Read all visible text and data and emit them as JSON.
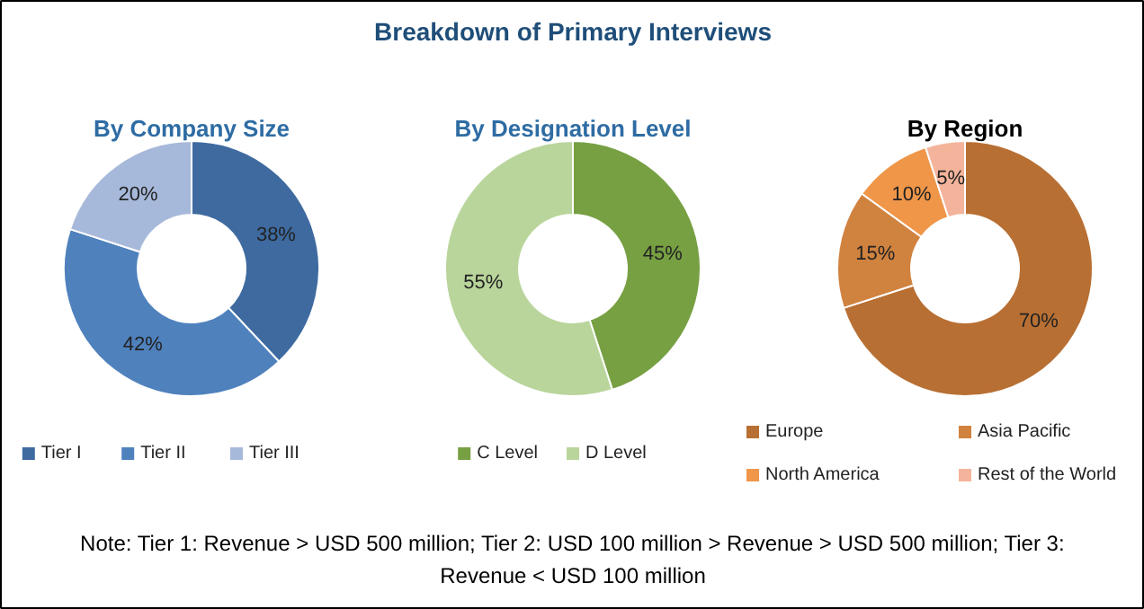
{
  "chart_data": [
    {
      "type": "donut",
      "subtitle": "By Company Size",
      "categories": [
        "Tier I",
        "Tier II",
        "Tier III"
      ],
      "values": [
        38,
        42,
        20
      ],
      "value_labels": [
        "38%",
        "42%",
        "20%"
      ],
      "colors": [
        "#3e6aa0",
        "#4f81bd",
        "#a7b9da"
      ],
      "legend": "bottom"
    },
    {
      "type": "donut",
      "title": "Breakdown of Primary Interviews",
      "subtitle": "By Designation Level",
      "categories": [
        "C Level",
        "D Level"
      ],
      "values": [
        45,
        55
      ],
      "value_labels": [
        "45%",
        "55%"
      ],
      "colors": [
        "#77a043",
        "#b9d59b"
      ],
      "legend": "bottom"
    },
    {
      "type": "donut",
      "subtitle": "By Region",
      "categories": [
        "Europe",
        "Asia Pacific",
        "North America",
        "Rest of the World"
      ],
      "values": [
        70,
        15,
        10,
        5
      ],
      "value_labels": [
        "70%",
        "15%",
        "10%",
        "5%"
      ],
      "colors": [
        "#b86f33",
        "#d0823f",
        "#f09649",
        "#f4b49b"
      ],
      "legend": "bottom",
      "annotations": [
        "Note: Tier 1: Revenue > USD 500 million; Tier 2: USD 100 million > Revenue > USD 500 million; Tier 3: Revenue < USD 100 million"
      ]
    }
  ]
}
